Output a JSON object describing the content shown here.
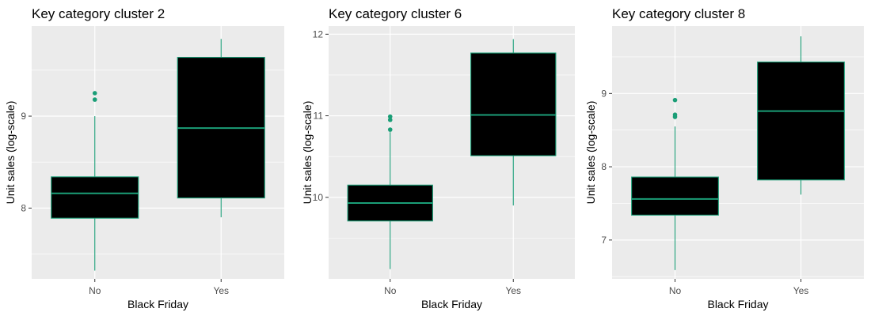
{
  "colors": {
    "panel_bg": "#ebebeb",
    "grid": "#ffffff",
    "box_fill": "#000000",
    "box_line": "#1b9e77"
  },
  "chart_data": [
    {
      "type": "boxplot",
      "title": "Key category cluster 2",
      "xlabel": "Black Friday",
      "ylabel": "Unit sales (log-scale)",
      "categories": [
        "No",
        "Yes"
      ],
      "ylim": [
        7.23,
        9.98
      ],
      "yticks": [
        8,
        9
      ],
      "grid": true,
      "boxes": [
        {
          "category": "No",
          "whisker_low": 7.32,
          "q1": 7.89,
          "median": 8.16,
          "q3": 8.34,
          "whisker_high": 9.0,
          "outliers": [
            9.18,
            9.25
          ]
        },
        {
          "category": "Yes",
          "whisker_low": 7.9,
          "q1": 8.11,
          "median": 8.87,
          "q3": 9.64,
          "whisker_high": 9.84,
          "outliers": []
        }
      ]
    },
    {
      "type": "boxplot",
      "title": "Key category cluster 6",
      "xlabel": "Black Friday",
      "ylabel": "Unit sales (log-scale)",
      "categories": [
        "No",
        "Yes"
      ],
      "ylim": [
        9.0,
        12.1
      ],
      "yticks": [
        10,
        11,
        12
      ],
      "grid": true,
      "boxes": [
        {
          "category": "No",
          "whisker_low": 9.12,
          "q1": 9.71,
          "median": 9.93,
          "q3": 10.15,
          "whisker_high": 10.8,
          "outliers": [
            10.83,
            10.95,
            10.99
          ]
        },
        {
          "category": "Yes",
          "whisker_low": 9.9,
          "q1": 10.51,
          "median": 11.01,
          "q3": 11.77,
          "whisker_high": 11.94,
          "outliers": []
        }
      ]
    },
    {
      "type": "boxplot",
      "title": "Key category cluster 8",
      "xlabel": "Black Friday",
      "ylabel": "Unit sales (log-scale)",
      "categories": [
        "No",
        "Yes"
      ],
      "ylim": [
        6.47,
        9.92
      ],
      "yticks": [
        7,
        8,
        9
      ],
      "grid": true,
      "boxes": [
        {
          "category": "No",
          "whisker_low": 6.59,
          "q1": 7.34,
          "median": 7.56,
          "q3": 7.86,
          "whisker_high": 8.55,
          "outliers": [
            8.68,
            8.71,
            8.91
          ]
        },
        {
          "category": "Yes",
          "whisker_low": 7.62,
          "q1": 7.82,
          "median": 8.76,
          "q3": 9.43,
          "whisker_high": 9.78,
          "outliers": []
        }
      ]
    }
  ]
}
